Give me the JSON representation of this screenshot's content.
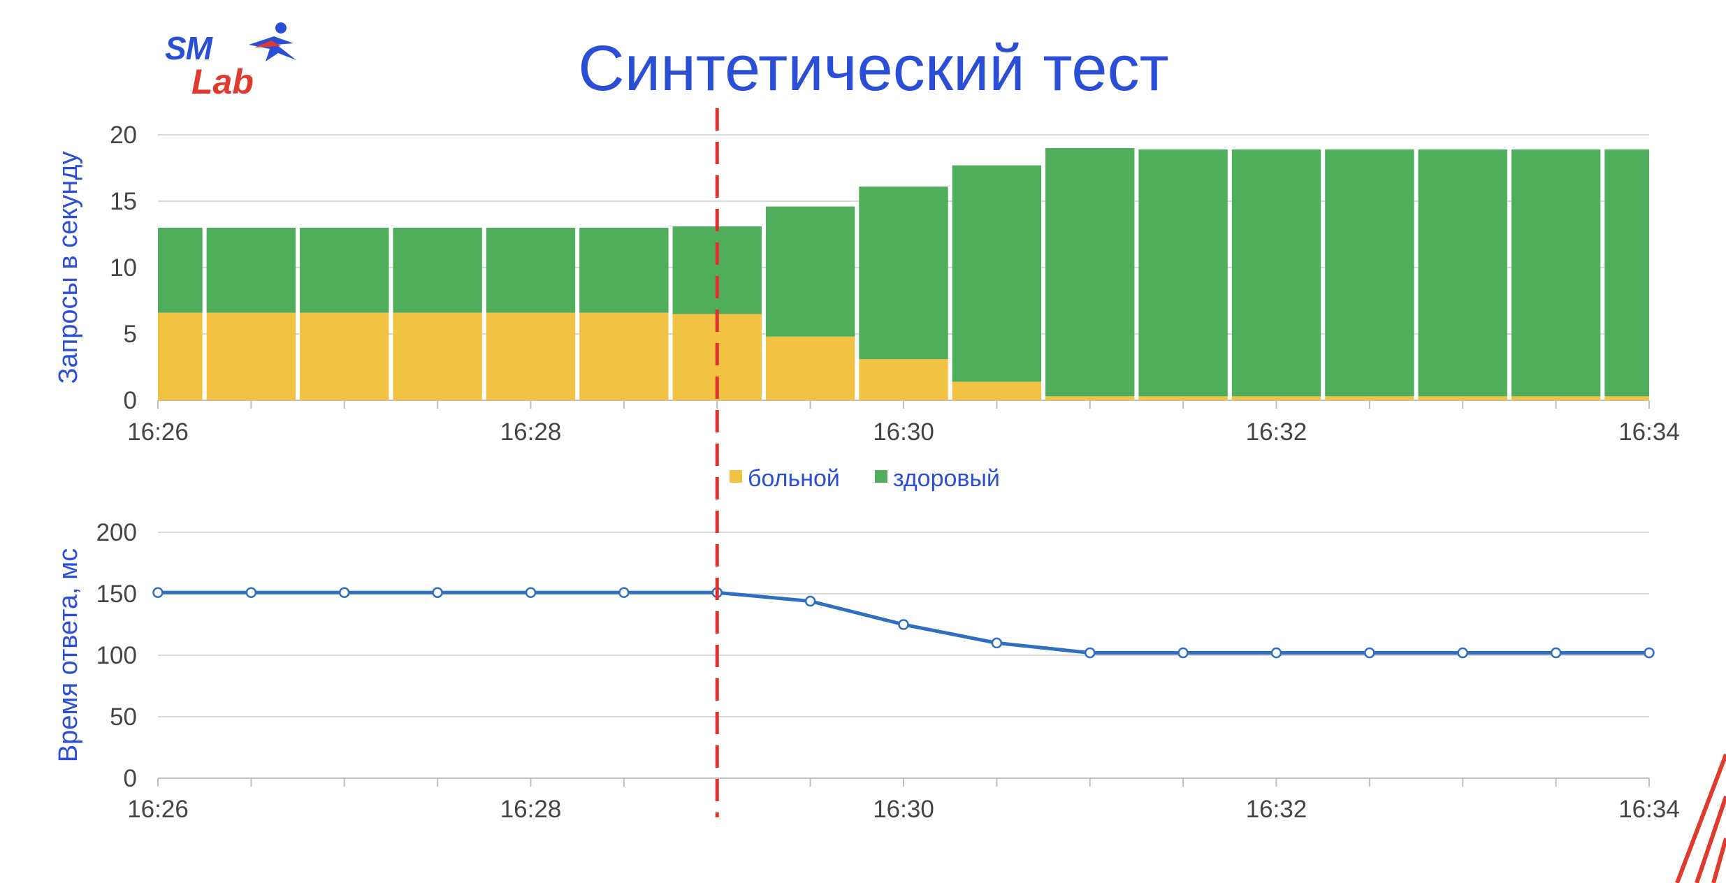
{
  "title": "Синтетический тест",
  "logo": {
    "line1": "SM",
    "line2": "Lab"
  },
  "colors": {
    "title": "#2a4fd6",
    "sick": "#f2c343",
    "healthy": "#4fad5b",
    "line": "#2f6fc1",
    "marker": "#e03030",
    "accent_red": "#e03a2e",
    "grid": "#d9d9d9"
  },
  "chart_data": [
    {
      "type": "bar",
      "stacked": true,
      "ylabel": "Запросы в секунду",
      "ylim": [
        0,
        20
      ],
      "yticks": [
        0,
        5,
        10,
        15,
        20
      ],
      "xlim": [
        "16:26",
        "16:34"
      ],
      "xticks": [
        "16:26",
        "16:28",
        "16:30",
        "16:32",
        "16:34"
      ],
      "bar_interval_seconds": 30,
      "categories": [
        "16:26:00",
        "16:26:30",
        "16:27:00",
        "16:27:30",
        "16:28:00",
        "16:28:30",
        "16:29:00",
        "16:29:30",
        "16:30:00",
        "16:30:30",
        "16:31:00",
        "16:31:30",
        "16:32:00",
        "16:32:30",
        "16:33:00",
        "16:33:30",
        "16:34:00"
      ],
      "series": [
        {
          "name": "больной",
          "color": "#f2c343",
          "values": [
            6.6,
            6.6,
            6.6,
            6.6,
            6.6,
            6.6,
            6.5,
            4.8,
            3.1,
            1.4,
            0.3,
            0.3,
            0.3,
            0.3,
            0.3,
            0.3,
            0.3
          ]
        },
        {
          "name": "здоровый",
          "color": "#4fad5b",
          "values": [
            6.4,
            6.4,
            6.4,
            6.4,
            6.4,
            6.4,
            6.6,
            9.8,
            13.0,
            16.3,
            18.7,
            18.6,
            18.6,
            18.6,
            18.6,
            18.6,
            18.6
          ]
        }
      ],
      "legend": [
        "больной",
        "здоровый"
      ],
      "legend_position": "bottom-center",
      "grid": true,
      "annotation": {
        "type": "vertical-dashed-line",
        "x": "16:29:00"
      }
    },
    {
      "type": "line",
      "ylabel": "Время ответа, мс",
      "ylim": [
        0,
        200
      ],
      "yticks": [
        0,
        50,
        100,
        150,
        200
      ],
      "xlim": [
        "16:26",
        "16:34"
      ],
      "xticks": [
        "16:26",
        "16:28",
        "16:30",
        "16:32",
        "16:34"
      ],
      "x": [
        "16:26:00",
        "16:26:30",
        "16:27:00",
        "16:27:30",
        "16:28:00",
        "16:28:30",
        "16:29:00",
        "16:29:30",
        "16:30:00",
        "16:30:30",
        "16:31:00",
        "16:31:30",
        "16:32:00",
        "16:32:30",
        "16:33:00",
        "16:33:30",
        "16:34:00"
      ],
      "series": [
        {
          "color": "#2f6fc1",
          "values": [
            151,
            151,
            151,
            151,
            151,
            151,
            151,
            144,
            125,
            110,
            102,
            102,
            102,
            102,
            102,
            102,
            102
          ]
        }
      ],
      "grid": true,
      "annotation": {
        "type": "vertical-dashed-line",
        "x": "16:29:00"
      }
    }
  ]
}
